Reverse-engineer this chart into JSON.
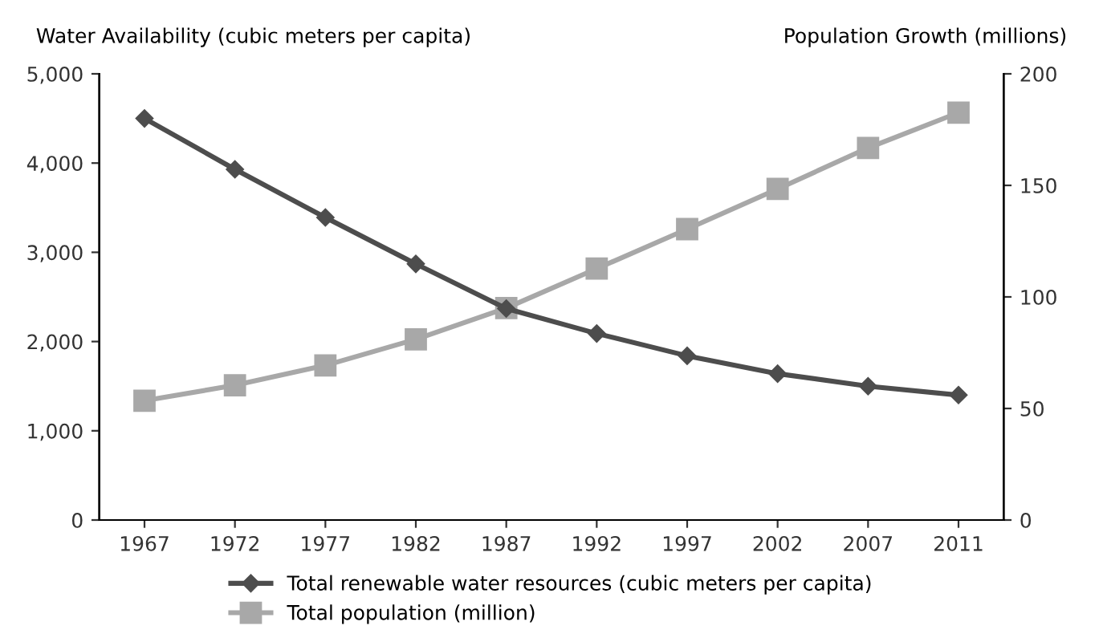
{
  "chart_data": {
    "type": "line",
    "ylabel": "Water Availability (cubic meters per capita)",
    "y2label": "Population Growth (millions)",
    "categories": [
      "1967",
      "1972",
      "1977",
      "1982",
      "1987",
      "1992",
      "1997",
      "2002",
      "2007",
      "2011"
    ],
    "series": [
      {
        "name": "Total renewable water resources (cubic meters per capita)",
        "color": "#4d4d4d",
        "marker": "diamond",
        "values": [
          4500,
          3930,
          3390,
          2870,
          2370,
          2090,
          1840,
          1640,
          1500,
          1400
        ]
      },
      {
        "name": "Total population (million)",
        "color": "#a8a8a8",
        "marker": "square",
        "axis": "y2",
        "values": [
          53.5,
          60.4,
          69.3,
          81,
          95,
          112.7,
          130.4,
          148.4,
          166.8,
          182.6
        ]
      }
    ],
    "ylim": [
      0,
      5000
    ],
    "yticks": [
      0,
      {
        "value": 1000,
        "label": "1,000"
      },
      {
        "value": 2000,
        "label": "2,000"
      },
      {
        "value": 3000,
        "label": "3,000"
      },
      {
        "value": 4000,
        "label": "4,000"
      },
      {
        "value": 5000,
        "label": "5,000"
      }
    ],
    "y2lim": [
      0,
      200
    ],
    "y2ticks": [
      0,
      50,
      100,
      150,
      200
    ],
    "grid": false,
    "legend": "bottom"
  }
}
